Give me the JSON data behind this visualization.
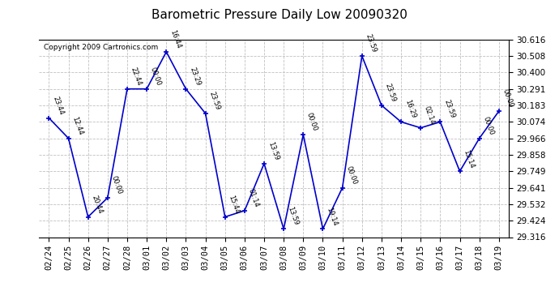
{
  "title": "Barometric Pressure Daily Low 20090320",
  "copyright": "Copyright 2009 Cartronics.com",
  "x_labels": [
    "02/24",
    "02/25",
    "02/26",
    "02/27",
    "02/28",
    "03/01",
    "03/02",
    "03/03",
    "03/04",
    "03/05",
    "03/06",
    "03/07",
    "03/08",
    "03/09",
    "03/10",
    "03/11",
    "03/12",
    "03/13",
    "03/14",
    "03/15",
    "03/16",
    "03/17",
    "03/18",
    "03/19"
  ],
  "y_values": [
    30.1,
    29.966,
    29.449,
    29.575,
    30.291,
    30.291,
    30.535,
    30.291,
    30.13,
    29.449,
    29.49,
    29.8,
    29.37,
    29.99,
    29.37,
    29.641,
    30.508,
    30.183,
    30.074,
    30.035,
    30.074,
    29.749,
    29.966,
    30.145
  ],
  "point_labels": [
    "23:44",
    "12:44",
    "20:44",
    "00:00",
    "22:44",
    "00:00",
    "16:44",
    "23:29",
    "23:59",
    "15:44",
    "01:14",
    "13:59",
    "13:59",
    "00:00",
    "19:14",
    "00:00",
    "23:59",
    "23:59",
    "16:29",
    "02:14",
    "23:59",
    "15:14",
    "00:00",
    "00:00"
  ],
  "line_color": "#0000cc",
  "marker_color": "#0000cc",
  "background_color": "#ffffff",
  "grid_color": "#c0c0c0",
  "title_fontsize": 11,
  "tick_fontsize": 7.5,
  "label_fontsize": 7,
  "ylim_min": 29.316,
  "ylim_max": 30.616,
  "yticks": [
    29.316,
    29.424,
    29.532,
    29.641,
    29.749,
    29.858,
    29.966,
    30.074,
    30.183,
    30.291,
    30.4,
    30.508,
    30.616
  ]
}
